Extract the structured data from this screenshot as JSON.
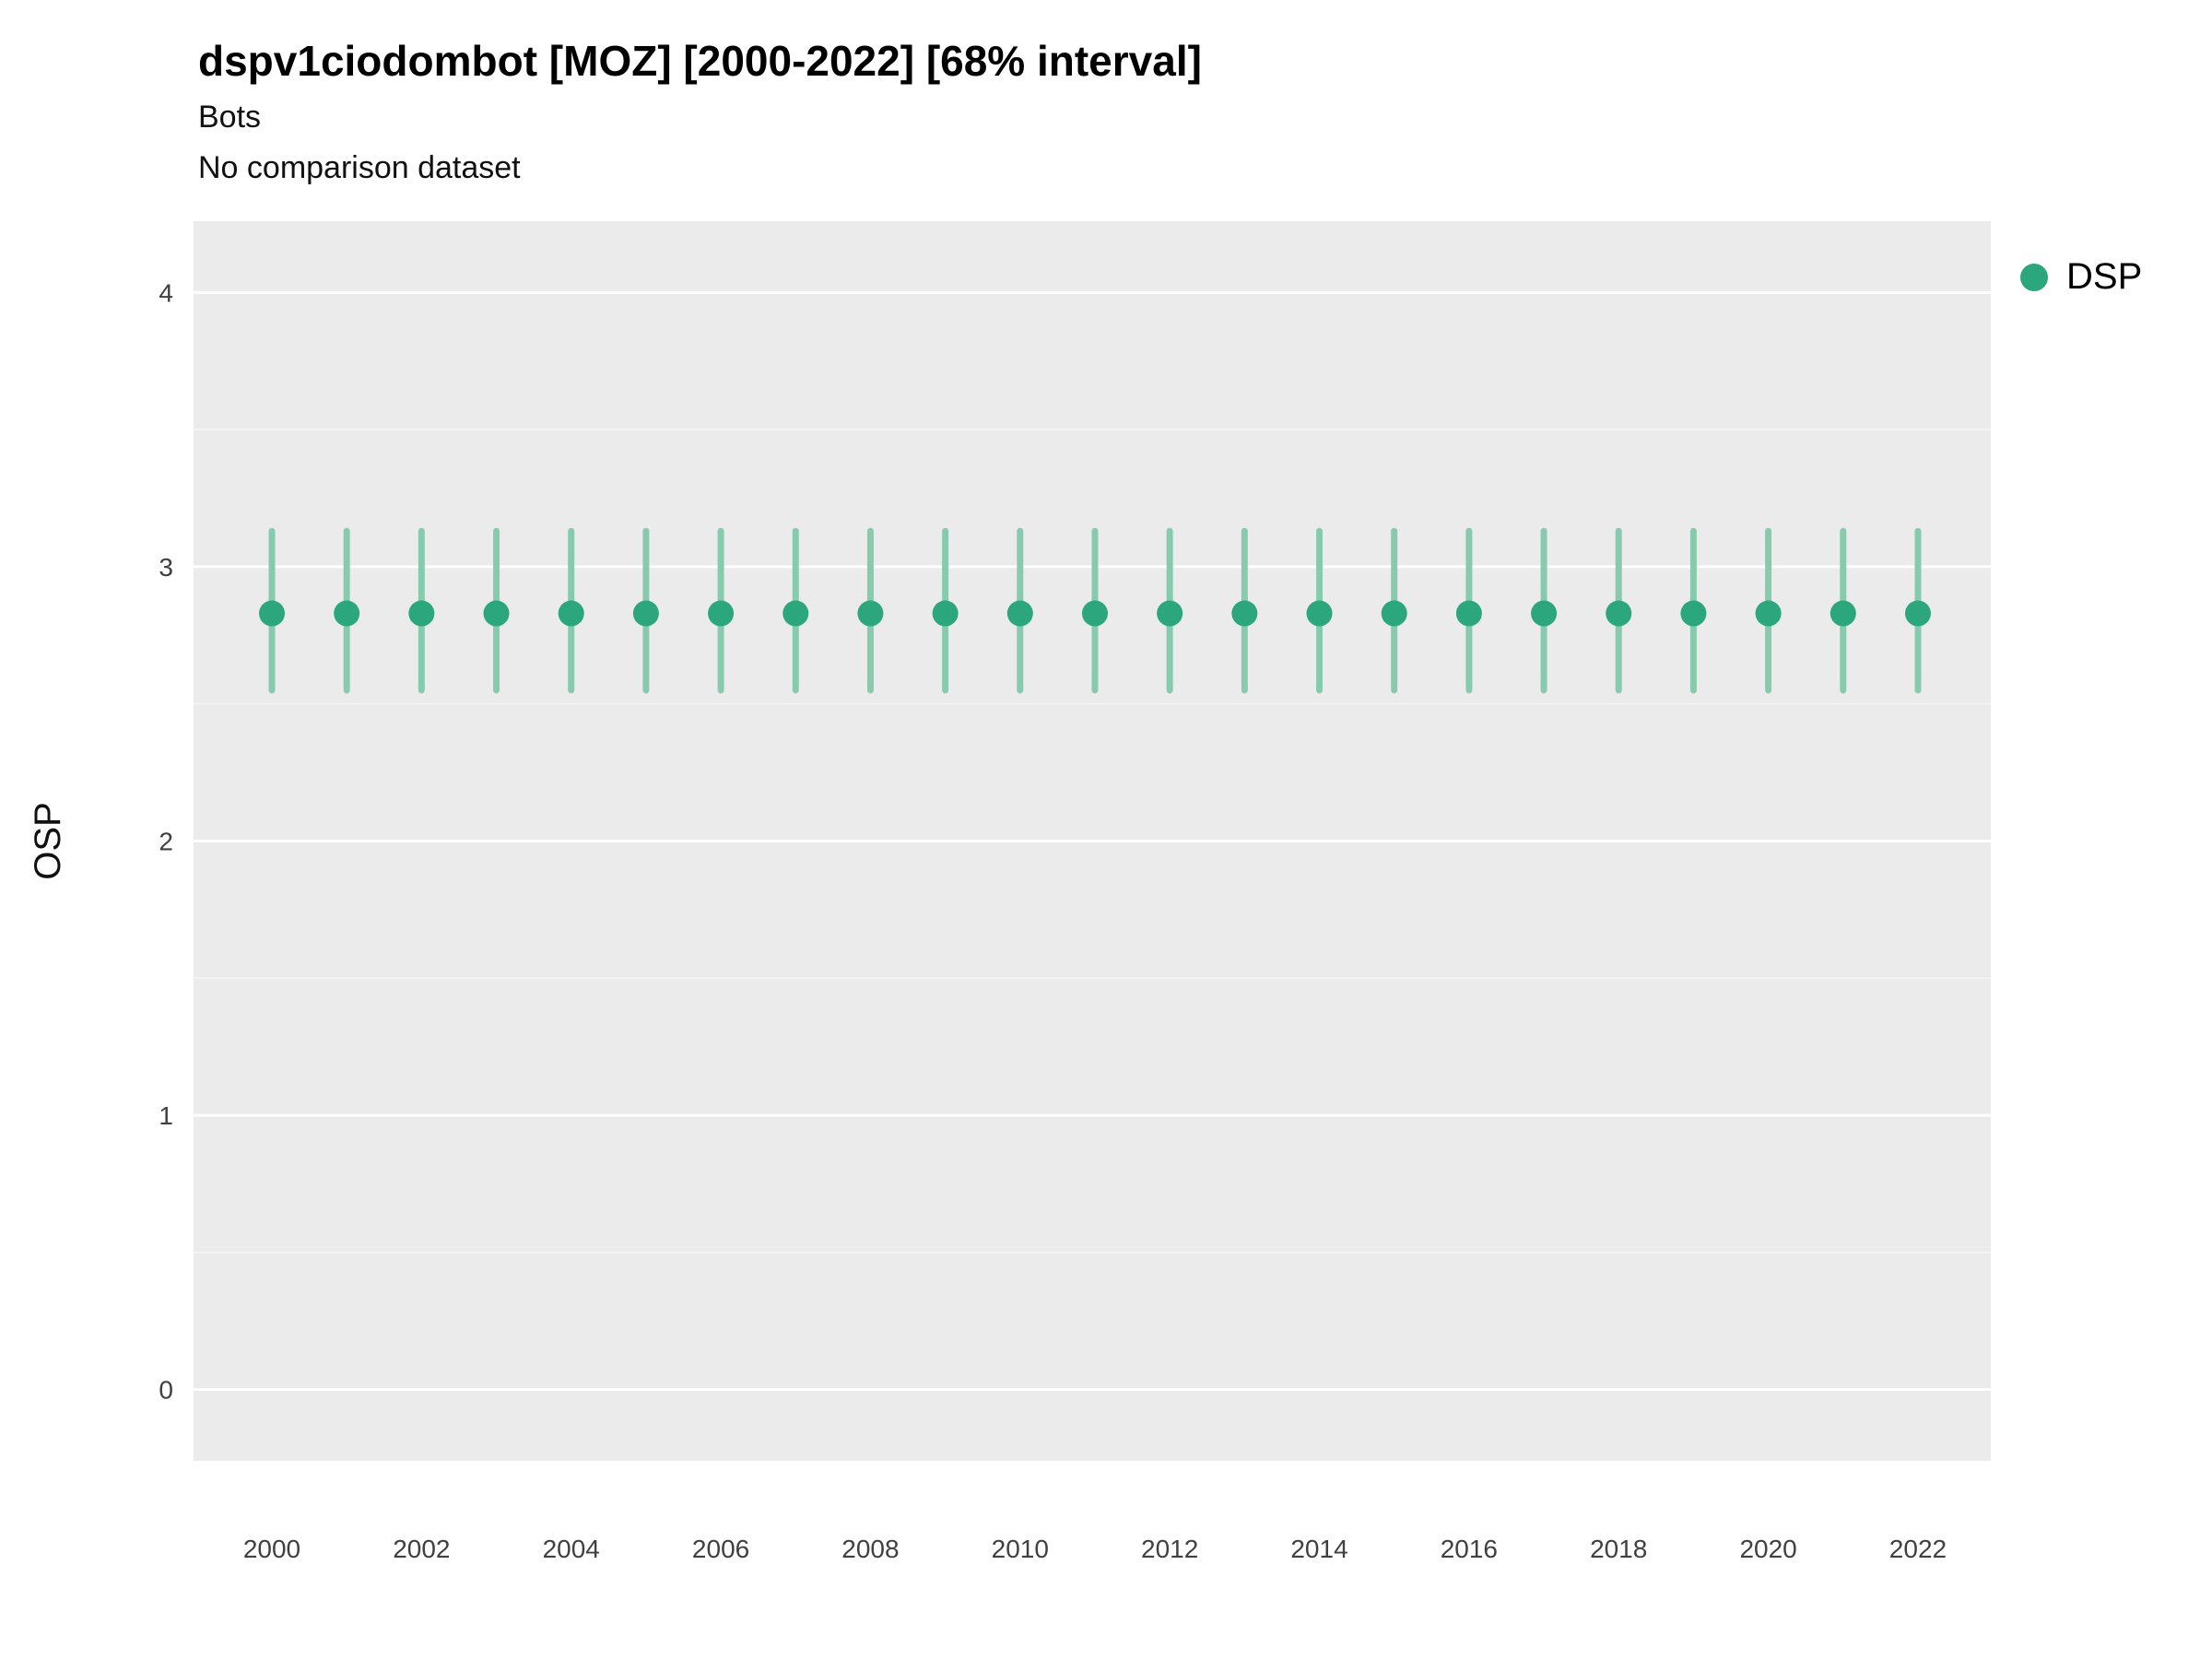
{
  "header": {
    "title": "dspv1ciodombot [MOZ] [2000-2022] [68% interval]",
    "subtitle1": "Bots",
    "subtitle2": "No comparison dataset"
  },
  "legend": {
    "label": "DSP",
    "color": "#2BA67D"
  },
  "colors": {
    "panel_bg": "#EBEBEB",
    "grid_major": "#FFFFFF",
    "grid_minor": "#F5F5F5",
    "point": "#2BA67D",
    "interval": "#87CBAE",
    "tick_text": "#404040",
    "axis_title": "#111111"
  },
  "chart_data": {
    "type": "scatter",
    "title": "dspv1ciodombot [MOZ] [2000-2022] [68% interval]",
    "subtitle": [
      "Bots",
      "No comparison dataset"
    ],
    "xlabel": "",
    "ylabel": "OSP",
    "ylim": [
      -0.26,
      4.26
    ],
    "y_ticks": [
      0,
      1,
      2,
      3,
      4
    ],
    "y_minor_ticks": [
      0.5,
      1.5,
      2.5,
      3.5
    ],
    "x_ticks": [
      2000,
      2002,
      2004,
      2006,
      2008,
      2010,
      2012,
      2014,
      2016,
      2018,
      2020,
      2022
    ],
    "grid": true,
    "legend_position": "right",
    "x": [
      2000,
      2001,
      2002,
      2003,
      2004,
      2005,
      2006,
      2007,
      2008,
      2009,
      2010,
      2011,
      2012,
      2013,
      2014,
      2015,
      2016,
      2017,
      2018,
      2019,
      2020,
      2021,
      2022
    ],
    "series": [
      {
        "name": "DSP",
        "values": [
          2.83,
          2.83,
          2.83,
          2.83,
          2.83,
          2.83,
          2.83,
          2.83,
          2.83,
          2.83,
          2.83,
          2.83,
          2.83,
          2.83,
          2.83,
          2.83,
          2.83,
          2.83,
          2.83,
          2.83,
          2.83,
          2.83,
          2.83
        ],
        "low": [
          2.55,
          2.55,
          2.55,
          2.55,
          2.55,
          2.55,
          2.55,
          2.55,
          2.55,
          2.55,
          2.55,
          2.55,
          2.55,
          2.55,
          2.55,
          2.55,
          2.55,
          2.55,
          2.55,
          2.55,
          2.55,
          2.55,
          2.55
        ],
        "high": [
          3.13,
          3.13,
          3.13,
          3.13,
          3.13,
          3.13,
          3.13,
          3.13,
          3.13,
          3.13,
          3.13,
          3.13,
          3.13,
          3.13,
          3.13,
          3.13,
          3.13,
          3.13,
          3.13,
          3.13,
          3.13,
          3.13,
          3.13
        ]
      }
    ]
  }
}
